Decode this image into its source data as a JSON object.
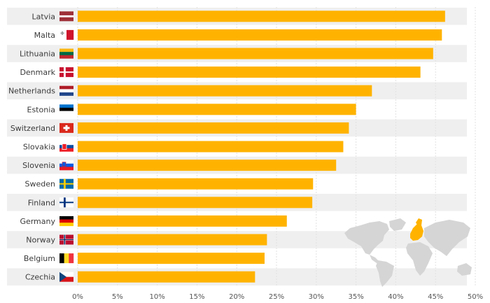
{
  "chart_data": {
    "type": "bar",
    "orientation": "horizontal",
    "categories": [
      "Latvia",
      "Malta",
      "Lithuania",
      "Denmark",
      "Netherlands",
      "Estonia",
      "Switzerland",
      "Slovakia",
      "Slovenia",
      "Sweden",
      "Finland",
      "Germany",
      "Norway",
      "Belgium",
      "Czechia"
    ],
    "values": [
      46.2,
      45.8,
      44.7,
      43.1,
      37.0,
      35.0,
      34.1,
      33.4,
      32.5,
      29.6,
      29.5,
      26.3,
      23.8,
      23.5,
      22.3
    ],
    "flags": [
      "latvia-flag-icon",
      "malta-flag-icon",
      "lithuania-flag-icon",
      "denmark-flag-icon",
      "netherlands-flag-icon",
      "estonia-flag-icon",
      "switzerland-flag-icon",
      "slovakia-flag-icon",
      "slovenia-flag-icon",
      "sweden-flag-icon",
      "finland-flag-icon",
      "germany-flag-icon",
      "norway-flag-icon",
      "belgium-flag-icon",
      "czechia-flag-icon"
    ],
    "xlim": [
      0,
      50
    ],
    "xticks": [
      0,
      5,
      10,
      15,
      20,
      25,
      30,
      35,
      40,
      45,
      50
    ],
    "tick_suffix": "%",
    "grid": true,
    "bar_color": "#ffb300",
    "row_band_color": "#efefef",
    "title": "",
    "xlabel": "",
    "ylabel": ""
  },
  "decoration": {
    "map": "world-map-europe-highlighted",
    "map_color": "#d5d5d5",
    "highlight_color": "#ffb300"
  }
}
